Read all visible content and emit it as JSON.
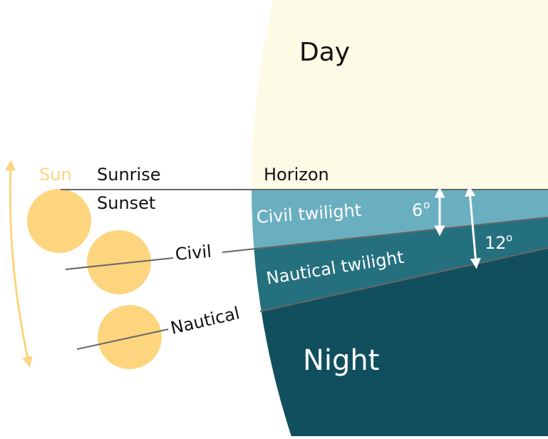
{
  "labels": {
    "day": "Day",
    "sun": "Sun",
    "sunrise": "Sunrise",
    "sunset": "Sunset",
    "horizon": "Horizon",
    "civil_twilight": "Civil twilight",
    "civil_degrees": "6",
    "civil_degree_sign": "o",
    "civil": "Civil",
    "nautical_twilight": "Nautical twilight",
    "nautical_degrees": "12",
    "nautical_degree_sign": "o",
    "nautical": "Nautical",
    "night": "Night"
  }
}
